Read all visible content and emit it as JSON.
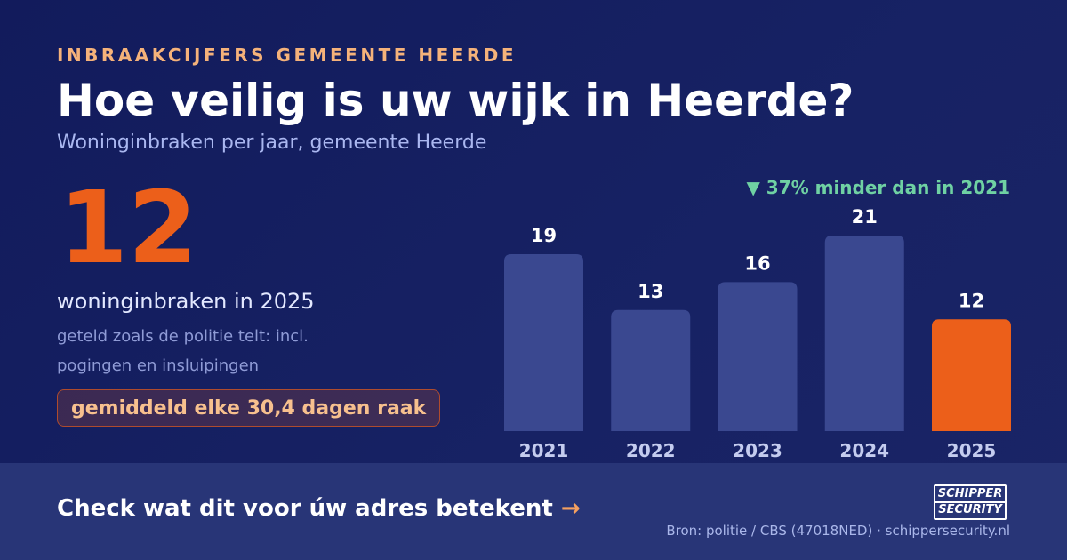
{
  "kicker": "INBRAAKCIJFERS GEMEENTE HEERDE",
  "title": "Hoe veilig is uw wijk in Heerde?",
  "subtitle": "Woninginbraken per jaar, gemeente Heerde",
  "highlight": {
    "number": "12",
    "label": "woninginbraken in 2025",
    "note": "geteld zoals de politie telt: incl. pogingen en insluipingen",
    "pill": "gemiddeld elke 30,4 dagen raak"
  },
  "change_text": "▼ 37% minder dan in 2021",
  "colors": {
    "bar": "#3a4890",
    "highlight_bar": "#ec5f1a",
    "change": "#6fd1a3",
    "accent": "#f5b27a"
  },
  "chart_data": {
    "type": "bar",
    "categories": [
      "2021",
      "2022",
      "2023",
      "2024",
      "2025"
    ],
    "values": [
      19,
      13,
      16,
      21,
      12
    ],
    "highlight_index": 4,
    "ylim": [
      0,
      21
    ],
    "grid": false,
    "data_labels": true
  },
  "footer": {
    "cta": "Check wat dit voor úw adres betekent",
    "cta_arrow": "→",
    "logo_line1": "SCHIPPER",
    "logo_line2": "SECURITY",
    "source": "Bron: politie / CBS (47018NED) · schippersecurity.nl"
  }
}
